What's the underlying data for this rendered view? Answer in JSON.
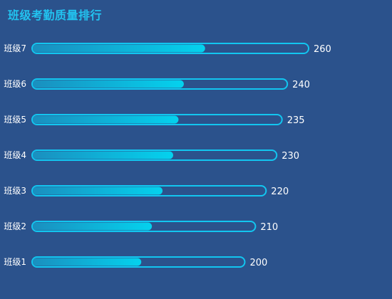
{
  "chart_data": {
    "type": "bar",
    "orientation": "horizontal",
    "title": "班级考勤质量排行",
    "categories": [
      "班级7",
      "班级6",
      "班级5",
      "班级4",
      "班级3",
      "班级2",
      "班级1"
    ],
    "values": [
      260,
      240,
      235,
      230,
      220,
      210,
      200
    ],
    "fill_values": [
      162,
      142,
      137,
      132,
      122,
      112,
      102
    ],
    "xlim": [
      0,
      260
    ],
    "grid": false,
    "legend": "none",
    "colors": {
      "background": "#2b528c",
      "title": "#22c3f0",
      "track_border": "#12c6f0",
      "fill_start": "#1a8fbf",
      "fill_end": "#04d2ee",
      "text": "#ffffff"
    }
  }
}
